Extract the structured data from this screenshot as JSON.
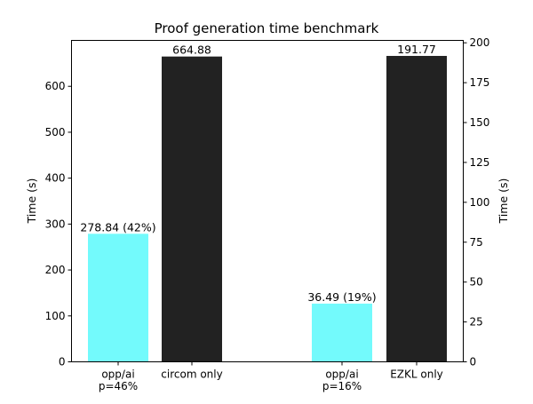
{
  "chart_data": {
    "type": "bar",
    "title": "Proof generation time benchmark",
    "colors": {
      "opp_ai": "#73FAFC",
      "baseline": "#222222"
    },
    "left_axis": {
      "ylabel": "Time (s)",
      "ylim": [
        0,
        700
      ],
      "ticks": [
        0,
        100,
        200,
        300,
        400,
        500,
        600
      ],
      "bars": [
        {
          "category": "opp/ai\np=46%",
          "value": 278.84,
          "label": "278.84 (42%)",
          "color": "#73FAFC"
        },
        {
          "category": "circom only",
          "value": 664.88,
          "label": "664.88",
          "color": "#222222"
        }
      ]
    },
    "right_axis": {
      "ylabel": "Time (s)",
      "ylim": [
        0,
        201.5
      ],
      "ticks": [
        0,
        25,
        50,
        75,
        100,
        125,
        150,
        175,
        200
      ],
      "bars": [
        {
          "category": "opp/ai\np=16%",
          "value": 36.49,
          "label": "36.49 (19%)",
          "color": "#73FAFC"
        },
        {
          "category": "EZKL only",
          "value": 191.77,
          "label": "191.77",
          "color": "#222222"
        }
      ]
    }
  }
}
